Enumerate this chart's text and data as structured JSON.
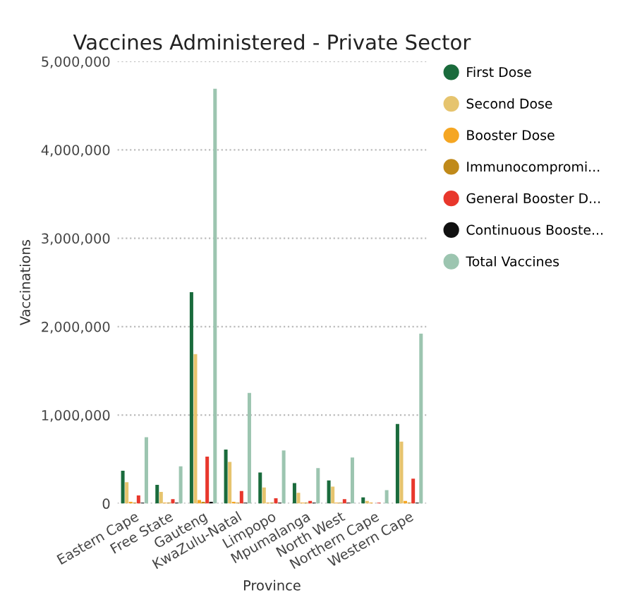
{
  "chart_data": {
    "type": "bar",
    "title": "Vaccines Administered - Private Sector",
    "xlabel": "Province",
    "ylabel": "Vaccinations",
    "categories": [
      "Eastern Cape",
      "Free State",
      "Gauteng",
      "KwaZulu-Natal",
      "Limpopo",
      "Mpumalanga",
      "North West",
      "Northern Cape",
      "Western Cape"
    ],
    "series": [
      {
        "name": "First Dose",
        "color": "#1a6b3c",
        "values": [
          370000,
          210000,
          2390000,
          610000,
          350000,
          230000,
          260000,
          70000,
          900000
        ]
      },
      {
        "name": "Second Dose",
        "color": "#e6c46e",
        "values": [
          240000,
          130000,
          1690000,
          470000,
          180000,
          120000,
          190000,
          30000,
          700000
        ]
      },
      {
        "name": "Booster Dose",
        "color": "#f5a623",
        "values": [
          20000,
          10000,
          40000,
          20000,
          10000,
          10000,
          10000,
          10000,
          30000
        ]
      },
      {
        "name": "Immunocompromi...",
        "color": "#c08a1a",
        "values": [
          10000,
          10000,
          20000,
          10000,
          10000,
          10000,
          10000,
          0,
          10000
        ]
      },
      {
        "name": "General Booster D...",
        "color": "#e8372c",
        "values": [
          90000,
          50000,
          530000,
          140000,
          60000,
          30000,
          50000,
          10000,
          280000
        ]
      },
      {
        "name": "Continuous Booste...",
        "color": "#111111",
        "values": [
          10000,
          10000,
          20000,
          10000,
          10000,
          10000,
          10000,
          0,
          10000
        ]
      },
      {
        "name": "Total Vaccines",
        "color": "#9cc5b0",
        "values": [
          750000,
          420000,
          4690000,
          1250000,
          600000,
          400000,
          520000,
          150000,
          1920000
        ]
      }
    ],
    "ylim": [
      0,
      5000000
    ],
    "yticks": [
      {
        "value": 0,
        "label": "0"
      },
      {
        "value": 1000000,
        "label": "1,000,000"
      },
      {
        "value": 2000000,
        "label": "2,000,000"
      },
      {
        "value": 3000000,
        "label": "3,000,000"
      },
      {
        "value": 4000000,
        "label": "4,000,000"
      },
      {
        "value": 5000000,
        "label": "5,000,000"
      }
    ],
    "grid": "y",
    "legend": "right"
  }
}
